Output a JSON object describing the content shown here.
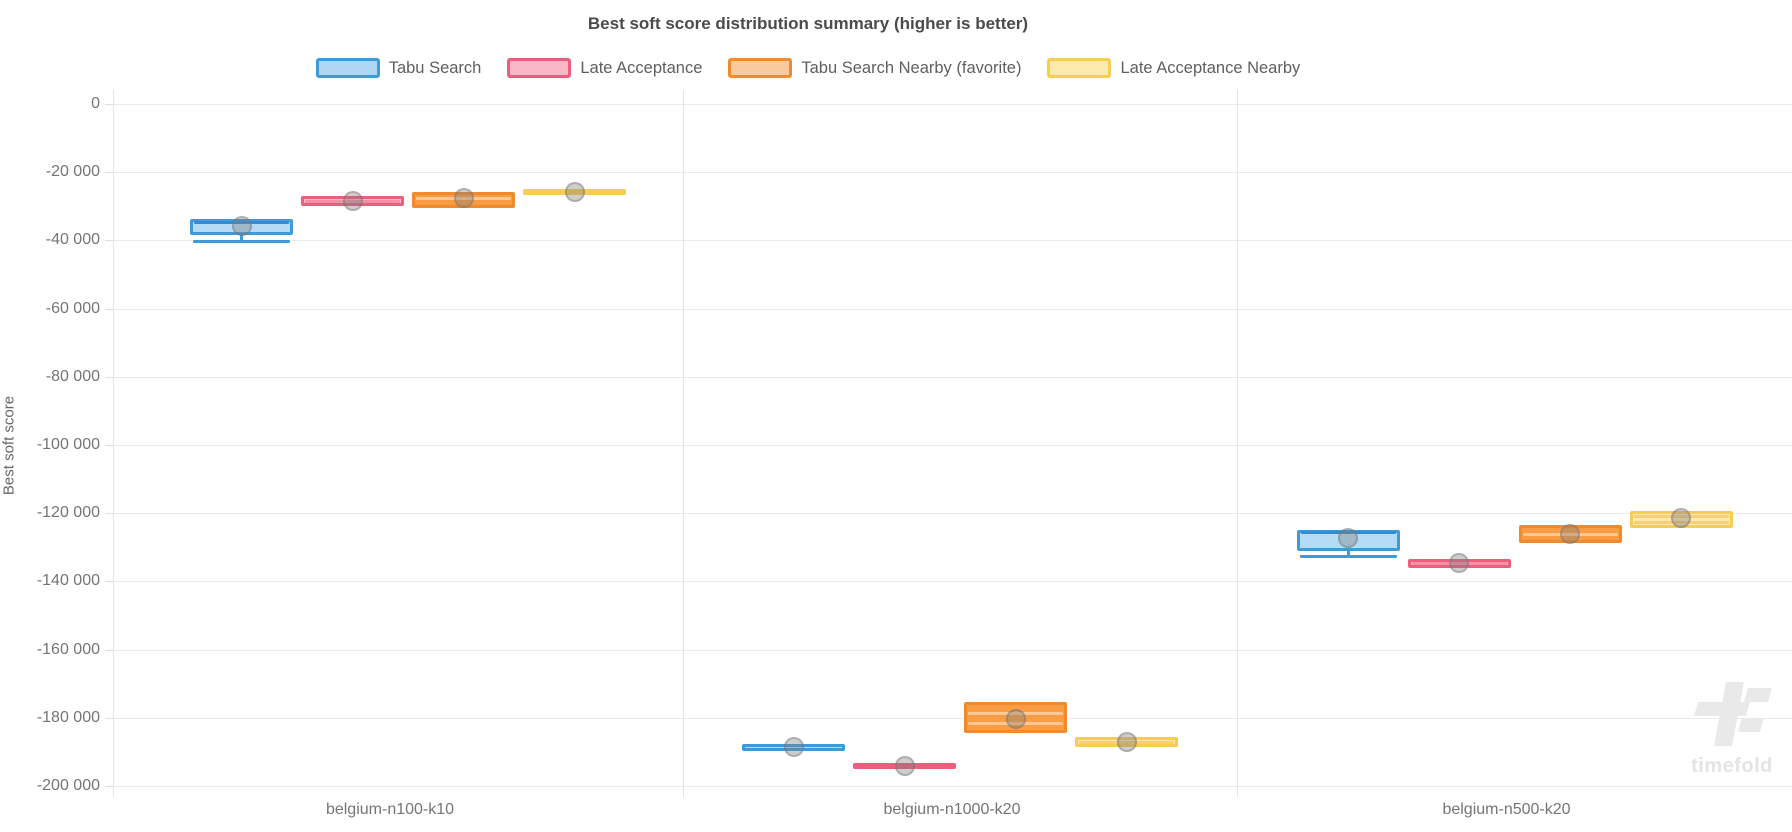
{
  "title": "Best soft score distribution summary (higher is better)",
  "watermark": "timefold",
  "y_axis": {
    "label": "Best soft score",
    "ticks": [
      {
        "value": 0,
        "label": "0"
      },
      {
        "value": -20000,
        "label": "-20 000"
      },
      {
        "value": -40000,
        "label": "-40 000"
      },
      {
        "value": -60000,
        "label": "-60 000"
      },
      {
        "value": -80000,
        "label": "-80 000"
      },
      {
        "value": -100000,
        "label": "-100 000"
      },
      {
        "value": -120000,
        "label": "-120 000"
      },
      {
        "value": -140000,
        "label": "-140 000"
      },
      {
        "value": -160000,
        "label": "-160 000"
      },
      {
        "value": -180000,
        "label": "-180 000"
      },
      {
        "value": -200000,
        "label": "-200 000"
      }
    ]
  },
  "legend": [
    {
      "name": "Tabu Search",
      "border": "#3e9bdb",
      "fill": "#aed7f4"
    },
    {
      "name": "Late Acceptance",
      "border": "#ee5d7c",
      "fill": "#f9b8c8"
    },
    {
      "name": "Tabu Search Nearby (favorite)",
      "border": "#f08a2c",
      "fill": "#f9c99e"
    },
    {
      "name": "Late Acceptance Nearby",
      "border": "#f5cd52",
      "fill": "#fbeaae"
    }
  ],
  "chart_data": {
    "type": "boxplot",
    "title": "Best soft score distribution summary (higher is better)",
    "ylabel": "Best soft score",
    "ylim": [
      -200000,
      0
    ],
    "grid": true,
    "legend_position": "top",
    "categories": [
      "belgium-n100-k10",
      "belgium-n1000-k20",
      "belgium-n500-k20"
    ],
    "series": [
      {
        "name": "Tabu Search",
        "border": "#3e9bdb",
        "box_fill": "#b5dbf6",
        "median_color": "#2f8fd6",
        "boxes": [
          {
            "q3": -33700,
            "q1": -38400,
            "medians": [
              -34500
            ],
            "mean": -35900,
            "min": -39900
          },
          {
            "q3": -187700,
            "q1": -189700,
            "medians": [
              -188700
            ],
            "mean": -188600,
            "min": null
          },
          {
            "q3": -124900,
            "q1": -131100,
            "medians": [
              -125500
            ],
            "mean": -127400,
            "min": -132400
          }
        ]
      },
      {
        "name": "Late Acceptance",
        "border": "#ee5d7c",
        "box_fill": "#f8bcca",
        "median_color": "#f290a6",
        "boxes": [
          {
            "q3": -26900,
            "q1": -29800,
            "medians": [
              -28300
            ],
            "mean": -28400,
            "min": null
          },
          {
            "q3": -193300,
            "q1": -194900,
            "medians": [
              -194100
            ],
            "mean": -194100,
            "min": null
          },
          {
            "q3": -133400,
            "q1": -136000,
            "medians": [
              -134700
            ],
            "mean": -134700,
            "min": null
          }
        ]
      },
      {
        "name": "Tabu Search Nearby (favorite)",
        "border": "#f08a2c",
        "box_fill": "#f99c44",
        "median_color": "#fcc896",
        "boxes": [
          {
            "q3": -25700,
            "q1": -30600,
            "medians": [
              -27700
            ],
            "mean": -27700,
            "min": null
          },
          {
            "q3": -175300,
            "q1": -184400,
            "medians": [
              -178700,
              -181600
            ],
            "mean": -180400,
            "min": null
          },
          {
            "q3": -123500,
            "q1": -128800,
            "medians": [
              -126200
            ],
            "mean": -126200,
            "min": null
          }
        ]
      },
      {
        "name": "Late Acceptance Nearby",
        "border": "#f5cd52",
        "box_fill": "#fbeaae",
        "median_color": "#f6d269",
        "boxes": [
          {
            "q3": -24900,
            "q1": -26500,
            "medians": [
              -25700
            ],
            "mean": -25700,
            "min": null
          },
          {
            "q3": -185600,
            "q1": -188700,
            "medians": [
              -187100
            ],
            "mean": -187200,
            "min": null
          },
          {
            "q3": -119300,
            "q1": -124200,
            "medians": [
              -120800,
              -122500
            ],
            "mean": -121400,
            "min": null
          }
        ]
      }
    ]
  }
}
